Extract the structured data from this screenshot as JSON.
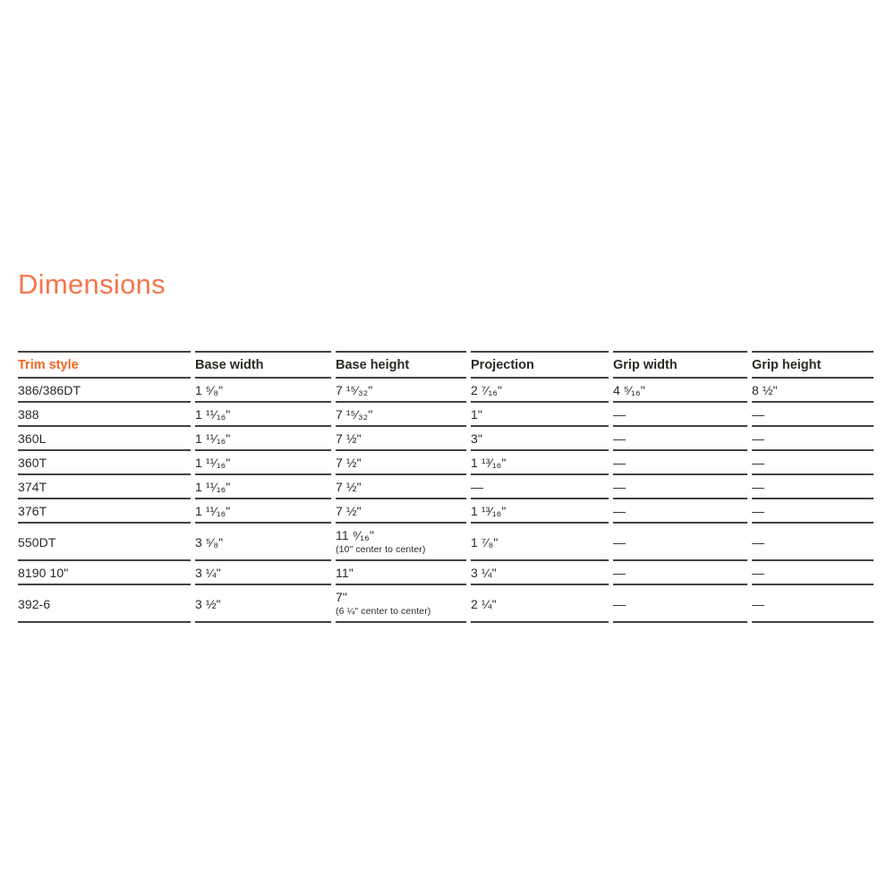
{
  "page": {
    "title": "Dimensions"
  },
  "colors": {
    "title_orange": "#f5754c",
    "header_orange": "#f26522",
    "text_dark": "#2d2a26",
    "rule_gray": "#45423e",
    "background": "#ffffff"
  },
  "table": {
    "columns": [
      {
        "label": "Trim style"
      },
      {
        "label": "Base width"
      },
      {
        "label": "Base height"
      },
      {
        "label": "Projection"
      },
      {
        "label": "Grip width"
      },
      {
        "label": "Grip height"
      }
    ],
    "rows": [
      {
        "cells": [
          {
            "text": "386/386DT"
          },
          {
            "text": "1 ⁵⁄₈\""
          },
          {
            "text": "7 ¹⁵⁄₃₂\""
          },
          {
            "text": "2 ⁷⁄₁₆\""
          },
          {
            "text": "4 ⁵⁄₁₆\""
          },
          {
            "text": "8 ½\""
          }
        ]
      },
      {
        "cells": [
          {
            "text": "388"
          },
          {
            "text": "1 ¹¹⁄₁₆\""
          },
          {
            "text": "7 ¹⁵⁄₃₂\""
          },
          {
            "text": "1\""
          },
          {
            "text": "—"
          },
          {
            "text": "—"
          }
        ]
      },
      {
        "cells": [
          {
            "text": "360L"
          },
          {
            "text": "1 ¹¹⁄₁₆\""
          },
          {
            "text": "7 ½\""
          },
          {
            "text": "3\""
          },
          {
            "text": "—"
          },
          {
            "text": "—"
          }
        ]
      },
      {
        "cells": [
          {
            "text": "360T"
          },
          {
            "text": "1 ¹¹⁄₁₆\""
          },
          {
            "text": "7 ½\""
          },
          {
            "text": "1 ¹³⁄₁₆\""
          },
          {
            "text": "—"
          },
          {
            "text": "—"
          }
        ]
      },
      {
        "cells": [
          {
            "text": "374T"
          },
          {
            "text": "1 ¹¹⁄₁₆\""
          },
          {
            "text": "7 ½\""
          },
          {
            "text": "—"
          },
          {
            "text": "—"
          },
          {
            "text": "—"
          }
        ]
      },
      {
        "cells": [
          {
            "text": "376T"
          },
          {
            "text": "1 ¹¹⁄₁₆\""
          },
          {
            "text": "7 ½\""
          },
          {
            "text": "1 ¹³⁄₁₆\""
          },
          {
            "text": "—"
          },
          {
            "text": "—"
          }
        ]
      },
      {
        "cells": [
          {
            "text": "550DT"
          },
          {
            "text": "3 ⁵⁄₈\""
          },
          {
            "text": "11 ⁹⁄₁₆\"",
            "note": "(10\" center to center)"
          },
          {
            "text": "1 ⁷⁄₈\""
          },
          {
            "text": "—"
          },
          {
            "text": "—"
          }
        ]
      },
      {
        "cells": [
          {
            "text": "8190 10\""
          },
          {
            "text": "3 ¼\""
          },
          {
            "text": "11\""
          },
          {
            "text": "3 ¼\""
          },
          {
            "text": "—"
          },
          {
            "text": "—"
          }
        ]
      },
      {
        "cells": [
          {
            "text": "392-6"
          },
          {
            "text": "3 ½\""
          },
          {
            "text": "7\"",
            "note": "(6 ¼\" center to center)"
          },
          {
            "text": "2 ¼\""
          },
          {
            "text": "—"
          },
          {
            "text": "—"
          }
        ]
      }
    ]
  }
}
